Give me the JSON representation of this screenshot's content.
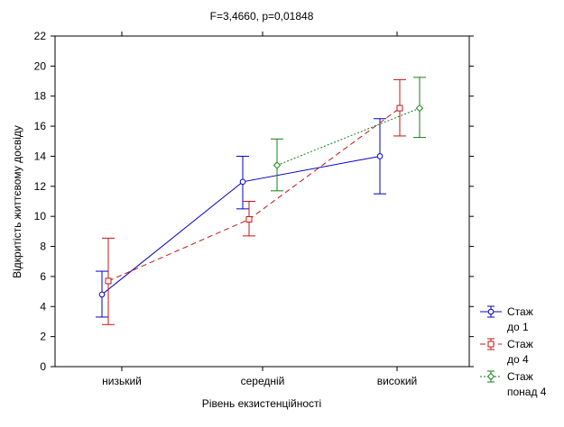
{
  "chart_data": {
    "type": "line",
    "title": "F=3,4660, p=0,01848",
    "xlabel": "Рівень екзистенційності",
    "ylabel": "Відкритість життєвому досвіду",
    "categories": [
      "низький",
      "середній",
      "високий"
    ],
    "ylim": [
      0,
      22
    ],
    "yticks": [
      0,
      2,
      4,
      6,
      8,
      10,
      12,
      14,
      16,
      18,
      20,
      22
    ],
    "grid": false,
    "legend_position": "bottom-right",
    "series": [
      {
        "name_lines": [
          "Стаж",
          "до 1"
        ],
        "color": "#0000c8",
        "line_style": "solid",
        "marker": "circle",
        "values": [
          4.8,
          12.3,
          14.0
        ],
        "lower": [
          3.3,
          10.5,
          11.5
        ],
        "upper": [
          6.35,
          14.0,
          16.5
        ]
      },
      {
        "name_lines": [
          "Стаж",
          "до 4"
        ],
        "color": "#c81414",
        "line_style": "dashed",
        "marker": "square",
        "values": [
          5.7,
          9.8,
          17.2
        ],
        "lower": [
          2.8,
          8.7,
          15.35
        ],
        "upper": [
          8.55,
          11.0,
          19.1
        ]
      },
      {
        "name_lines": [
          "Стаж",
          "понад 4"
        ],
        "color": "#148214",
        "line_style": "dotted",
        "marker": "diamond",
        "values": [
          null,
          13.4,
          17.2
        ],
        "lower": [
          null,
          11.7,
          15.25
        ],
        "upper": [
          null,
          15.15,
          19.25
        ]
      }
    ]
  }
}
